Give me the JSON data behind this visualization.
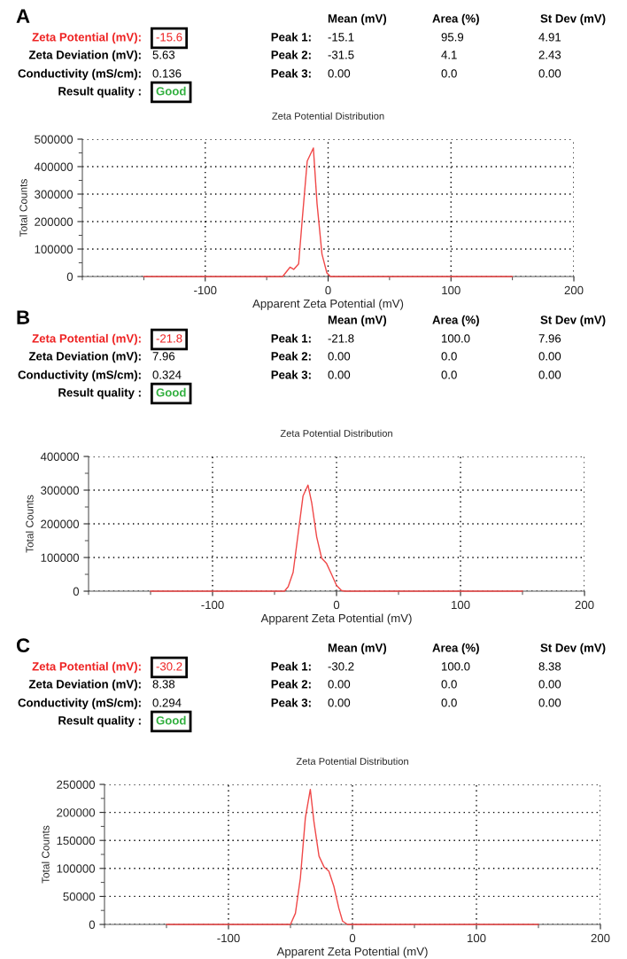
{
  "chart_data": [
    {
      "type": "line",
      "title": "Zeta Potential Distribution",
      "xlabel": "Apparent Zeta Potential (mV)",
      "ylabel": "Total Counts",
      "series": [
        {
          "color": "#f04848",
          "x": [
            -150,
            -37,
            -31,
            -28,
            -24,
            -21,
            -17,
            -12,
            -9,
            -5,
            -1,
            2,
            150
          ],
          "values": [
            0,
            0,
            34000,
            26000,
            46000,
            210000,
            420000,
            468000,
            265000,
            82000,
            13000,
            0,
            0
          ]
        }
      ],
      "xlim": [
        -200,
        200
      ],
      "xticks": [
        -100,
        0,
        100,
        200
      ],
      "ylim": [
        0,
        500000
      ],
      "yticks": [
        0,
        100000,
        200000,
        300000,
        400000,
        500000
      ],
      "grid": true,
      "annotations": [
        "A",
        "Zeta Potential (mV):",
        "-15.6",
        "Zeta Deviation (mV):",
        "5.63",
        "Conductivity (mS/cm):",
        "0.136",
        "Result quality :",
        "Good",
        "Mean (mV)",
        "Area (%)",
        "St Dev (mV)",
        "Peak 1:",
        "-15.1",
        "95.9",
        "4.91",
        "Peak 2:",
        "-31.5",
        "4.1",
        "2.43",
        "Peak 3:",
        "0.00",
        "0.0",
        "0.00"
      ]
    },
    {
      "type": "line",
      "title": "Zeta Potential Distribution",
      "xlabel": "Apparent Zeta Potential (mV)",
      "ylabel": "Total Counts",
      "series": [
        {
          "color": "#f04848",
          "x": [
            -150,
            -42,
            -39,
            -35,
            -27,
            -23,
            -20,
            -16,
            -12,
            -8,
            -4,
            0,
            4,
            7,
            150
          ],
          "values": [
            0,
            0,
            13000,
            56000,
            283000,
            315000,
            262000,
            161000,
            98000,
            82000,
            50000,
            17000,
            2000,
            0,
            0
          ]
        }
      ],
      "xlim": [
        -200,
        200
      ],
      "xticks": [
        -100,
        0,
        100,
        200
      ],
      "ylim": [
        0,
        400000
      ],
      "yticks": [
        0,
        100000,
        200000,
        300000,
        400000
      ],
      "grid": true,
      "annotations": [
        "B",
        "Zeta Potential (mV):",
        "-21.8",
        "Zeta Deviation (mV):",
        "7.96",
        "Conductivity (mS/cm):",
        "0.324",
        "Result quality :",
        "Good",
        "Mean (mV)",
        "Area (%)",
        "St Dev (mV)",
        "Peak 1:",
        "-21.8",
        "100.0",
        "7.96",
        "Peak 2:",
        "0.00",
        "0.0",
        "0.00",
        "Peak 3:",
        "0.00",
        "0.0",
        "0.00"
      ]
    },
    {
      "type": "line",
      "title": "Zeta Potential Distribution",
      "xlabel": "Apparent Zeta Potential (mV)",
      "ylabel": "Total Counts",
      "series": [
        {
          "color": "#f04848",
          "x": [
            -150,
            -50,
            -46,
            -42,
            -38,
            -34,
            -31,
            -27,
            -23,
            -19,
            -15,
            -11,
            -8,
            -4,
            150
          ],
          "values": [
            0,
            0,
            20000,
            83000,
            190000,
            241000,
            182000,
            122000,
            103000,
            95000,
            68000,
            29000,
            6000,
            0,
            0
          ]
        }
      ],
      "xlim": [
        -200,
        200
      ],
      "xticks": [
        -100,
        0,
        100,
        200
      ],
      "ylim": [
        0,
        250000
      ],
      "yticks": [
        0,
        50000,
        100000,
        150000,
        200000,
        250000
      ],
      "grid": true,
      "annotations": [
        "C",
        "Zeta Potential (mV):",
        "-30.2",
        "Zeta Deviation (mV):",
        "8.38",
        "Conductivity (mS/cm):",
        "0.294",
        "Result quality :",
        "Good",
        "Mean (mV)",
        "Area (%)",
        "St Dev (mV)",
        "Peak 1:",
        "-30.2",
        "100.0",
        "8.38",
        "Peak 2:",
        "0.00",
        "0.0",
        "0.00",
        "Peak 3:",
        "0.00",
        "0.0",
        "0.00"
      ]
    }
  ]
}
